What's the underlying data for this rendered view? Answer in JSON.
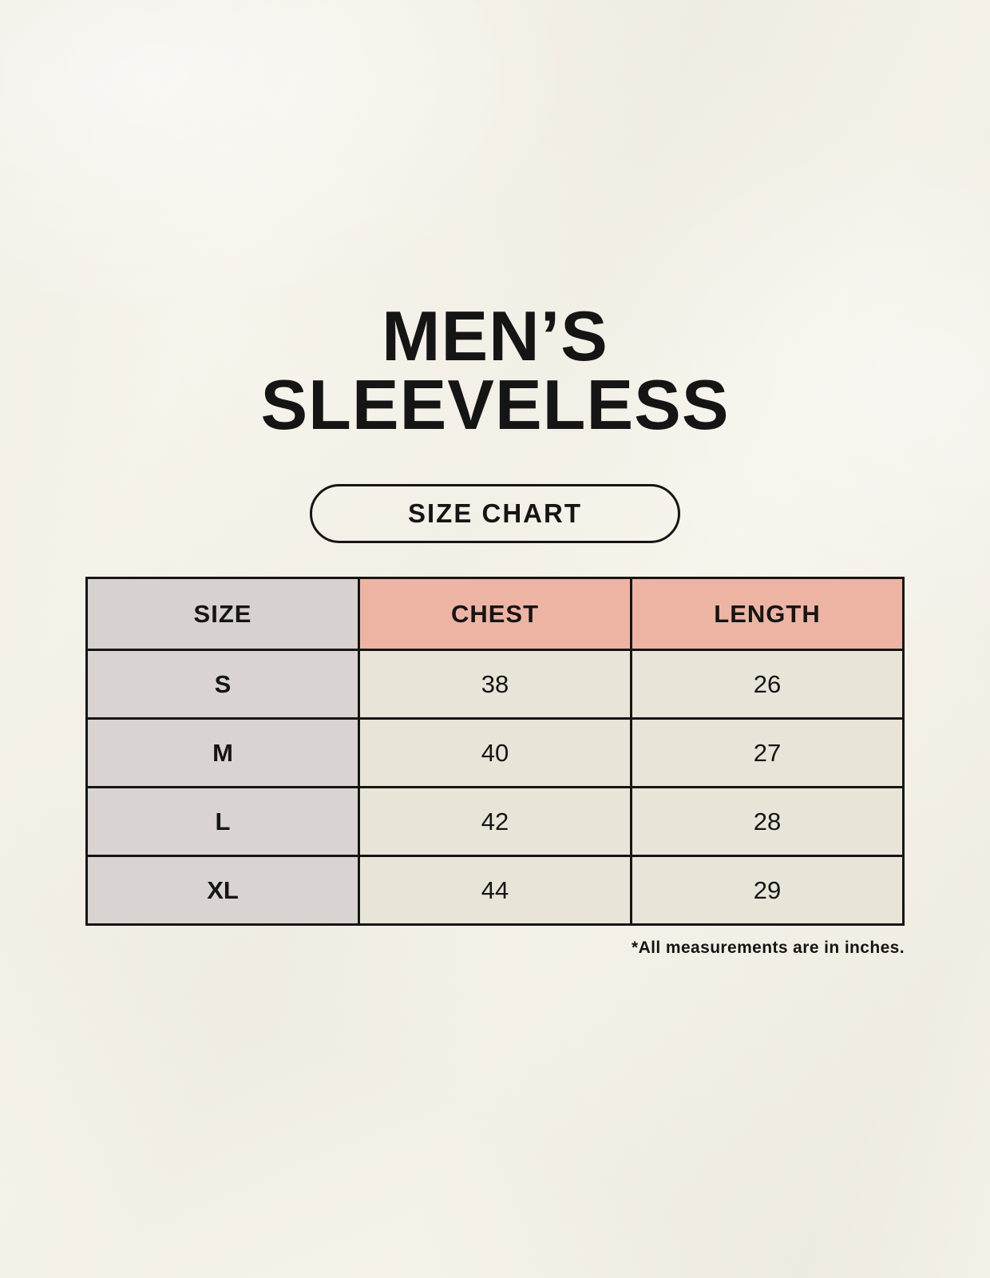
{
  "header": {
    "title_line1": "MEN’S",
    "title_line2": "SLEEVELESS",
    "badge_label": "SIZE CHART"
  },
  "footnote": "*All measurements are in inches.",
  "colors": {
    "background": "#f7f4ec",
    "header_size_bg": "#d7d1cf",
    "header_measure_bg": "#edb4a4",
    "row_label_bg": "#d9d3d1",
    "cell_bg": "#e9e4d8",
    "border": "#151515",
    "text": "#151515"
  },
  "chart_data": {
    "type": "table",
    "title": "MEN’S SLEEVELESS SIZE CHART",
    "units": "inches",
    "columns": [
      "SIZE",
      "CHEST",
      "LENGTH"
    ],
    "rows": [
      {
        "size": "S",
        "chest": "38",
        "length": "26"
      },
      {
        "size": "M",
        "chest": "40",
        "length": "27"
      },
      {
        "size": "L",
        "chest": "42",
        "length": "28"
      },
      {
        "size": "XL",
        "chest": "44",
        "length": "29"
      }
    ]
  }
}
